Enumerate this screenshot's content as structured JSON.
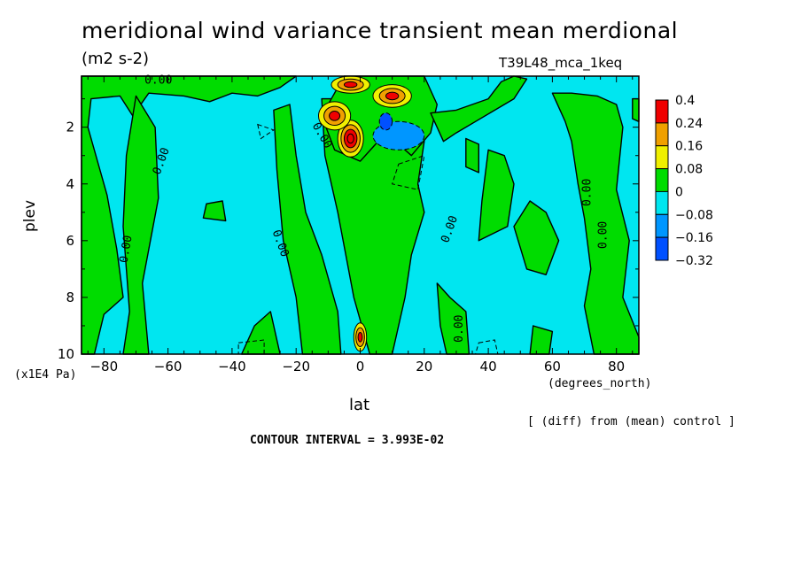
{
  "chart_data": {
    "type": "heatmap",
    "title": "meridional wind variance transient mean merdional",
    "units": "(m2 s-2)",
    "run_label": "T39L48_mca_1keq",
    "xlabel": "lat",
    "x_unit_label": "(degrees_north)",
    "ylabel": "plev",
    "y_unit_label": "(x1E4 Pa)",
    "x_ticks": [
      -80,
      -60,
      -40,
      -20,
      0,
      20,
      40,
      60,
      80
    ],
    "x_tick_labels": [
      "−80",
      "−60",
      "−40",
      "−20",
      "0",
      "20",
      "40",
      "60",
      "80"
    ],
    "y_ticks": [
      2,
      4,
      6,
      8,
      10
    ],
    "xlim": [
      -87,
      87
    ],
    "ylim": [
      10,
      0.2
    ],
    "y_inverted": true,
    "colorbar": {
      "levels": [
        "0.4",
        "0.24",
        "0.16",
        "0.08",
        "0",
        "−0.08",
        "−0.16",
        "−0.32"
      ],
      "colors": [
        "#f00000",
        "#f0a000",
        "#f0f000",
        "#00dc00",
        "#00e6f0",
        "#0096ff",
        "#0050ff"
      ]
    },
    "contour_labels": [
      {
        "text": "0.00",
        "lat": -62,
        "plev": 3.2,
        "angle": -70
      },
      {
        "text": "0.00",
        "lat": -73,
        "plev": 6.3,
        "angle": -80
      },
      {
        "text": "0.00",
        "lat": -25,
        "plev": 6.1,
        "angle": 70
      },
      {
        "text": "0.00",
        "lat": -12,
        "plev": 2.3,
        "angle": 60
      },
      {
        "text": "0.00",
        "lat": 28,
        "plev": 5.6,
        "angle": -70
      },
      {
        "text": "0.00",
        "lat": 31,
        "plev": 9.1,
        "angle": -90
      },
      {
        "text": "0.00",
        "lat": 71,
        "plev": 4.3,
        "angle": -90
      },
      {
        "text": "0.00",
        "lat": 76,
        "plev": 5.8,
        "angle": -90
      },
      {
        "text": "0.00",
        "lat": -63,
        "plev": 0.35,
        "angle": 0
      }
    ],
    "features": [
      {
        "lat": -3,
        "plev": 2.4,
        "value": 0.4,
        "rx": 4,
        "ry": 0.65
      },
      {
        "lat": -8,
        "plev": 1.6,
        "value": 0.24,
        "rx": 5,
        "ry": 0.5
      },
      {
        "lat": 10,
        "plev": 0.9,
        "value": 0.24,
        "rx": 6,
        "ry": 0.4
      },
      {
        "lat": -3,
        "plev": 0.5,
        "value": 0.24,
        "rx": 6,
        "ry": 0.3
      },
      {
        "lat": 0,
        "plev": 9.4,
        "value": 0.24,
        "rx": 2,
        "ry": 0.5
      },
      {
        "lat": 12,
        "plev": 2.3,
        "value": -0.16,
        "rx": 8,
        "ry": 0.5
      },
      {
        "lat": 8,
        "plev": 1.8,
        "value": -0.32,
        "rx": 2,
        "ry": 0.3
      }
    ],
    "grid": false,
    "legend": "right"
  },
  "annotations": {
    "diff_note": "[ (diff) from (mean) control ]",
    "contour_interval": "CONTOUR INTERVAL = 3.993E-02"
  }
}
